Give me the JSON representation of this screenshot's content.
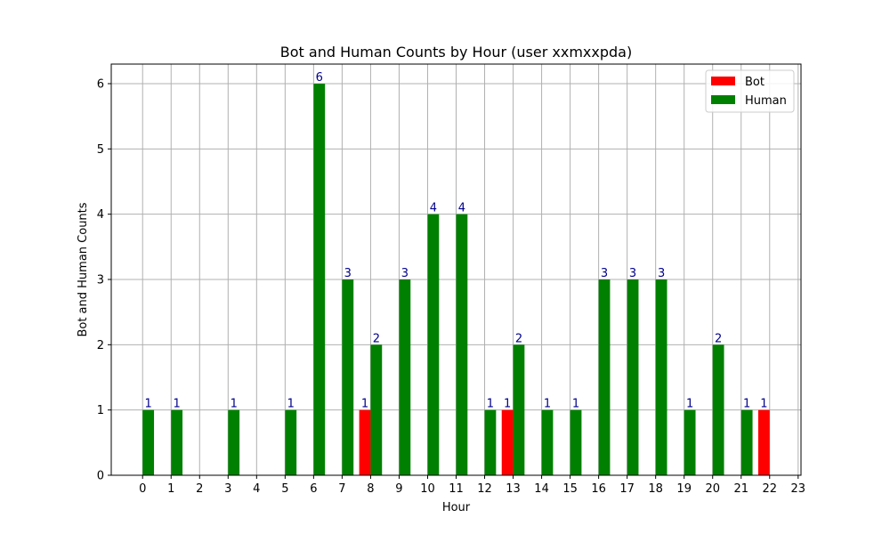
{
  "chart_data": {
    "type": "bar",
    "title": "Bot and Human Counts by Hour (user xxmxxpda)",
    "xlabel": "Hour",
    "ylabel": "Bot and Human Counts",
    "categories": [
      "0",
      "1",
      "2",
      "3",
      "4",
      "5",
      "6",
      "7",
      "8",
      "9",
      "10",
      "11",
      "12",
      "13",
      "14",
      "15",
      "16",
      "17",
      "18",
      "19",
      "20",
      "21",
      "22",
      "23"
    ],
    "series": [
      {
        "name": "Bot",
        "color": "#ff0000",
        "values": [
          0,
          0,
          0,
          0,
          0,
          0,
          0,
          0,
          1,
          0,
          0,
          0,
          0,
          1,
          0,
          0,
          0,
          0,
          0,
          0,
          0,
          0,
          1,
          0
        ]
      },
      {
        "name": "Human",
        "color": "#008000",
        "values": [
          1,
          1,
          0,
          1,
          0,
          1,
          6,
          3,
          2,
          3,
          4,
          4,
          1,
          2,
          1,
          1,
          3,
          3,
          3,
          1,
          2,
          1,
          0,
          0
        ]
      }
    ],
    "ylim": [
      0,
      6.3
    ],
    "yticks": [
      0,
      1,
      2,
      3,
      4,
      5,
      6
    ],
    "grid": true,
    "legend": "top-right",
    "data_label_color": "#00008b"
  }
}
